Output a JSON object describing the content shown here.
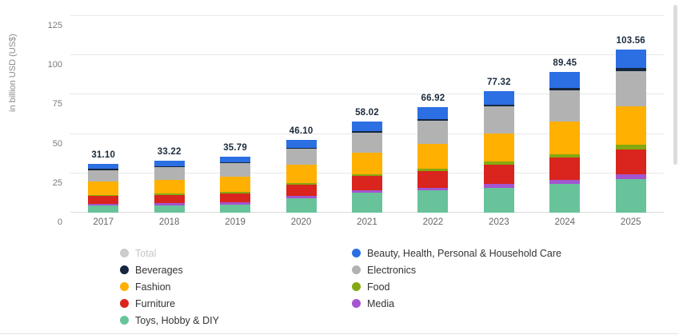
{
  "chart_data": {
    "type": "bar",
    "stacked": true,
    "title": "",
    "xlabel": "",
    "ylabel": "in billion USD (US$)",
    "ylim": [
      0,
      125
    ],
    "yticks": [
      0,
      25,
      50,
      75,
      100,
      125
    ],
    "grid": true,
    "legend_position": "bottom",
    "categories": [
      "2017",
      "2018",
      "2019",
      "2020",
      "2021",
      "2022",
      "2023",
      "2024",
      "2025"
    ],
    "total_labels": [
      "31.10",
      "33.22",
      "35.79",
      "46.10",
      "58.02",
      "66.92",
      "77.32",
      "89.45",
      "103.56"
    ],
    "totals": [
      31.1,
      33.22,
      35.79,
      46.1,
      58.02,
      66.92,
      77.32,
      89.45,
      103.56
    ],
    "stack_order": [
      "Toys, Hobby & DIY",
      "Media",
      "Furniture",
      "Food",
      "Fashion",
      "Electronics",
      "Beverages",
      "Beauty, Health, Personal & Household Care"
    ],
    "series": [
      {
        "name": "Beauty, Health, Personal & Household Care",
        "color": "#2b6fe3",
        "values": [
          3.3,
          3.5,
          3.7,
          4.7,
          6.0,
          7.2,
          8.5,
          10.25,
          11.76
        ]
      },
      {
        "name": "Beverages",
        "color": "#16273f",
        "values": [
          0.6,
          0.72,
          0.79,
          0.9,
          1.02,
          1.2,
          1.32,
          1.5,
          1.7
        ]
      },
      {
        "name": "Electronics",
        "color": "#b2b2b2",
        "values": [
          7.5,
          8.0,
          8.6,
          10.0,
          13.0,
          15.0,
          17.0,
          19.5,
          22.5
        ]
      },
      {
        "name": "Fashion",
        "color": "#ffb000",
        "values": [
          8.5,
          9.0,
          9.7,
          11.5,
          13.5,
          15.5,
          18.0,
          21.0,
          24.5
        ]
      },
      {
        "name": "Food",
        "color": "#84a810",
        "values": [
          0.5,
          0.6,
          0.7,
          1.0,
          1.2,
          1.5,
          1.8,
          2.2,
          2.8
        ]
      },
      {
        "name": "Furniture",
        "color": "#d9251d",
        "values": [
          5.0,
          5.4,
          5.9,
          7.5,
          9.0,
          10.5,
          12.5,
          14.0,
          16.0
        ]
      },
      {
        "name": "Media",
        "color": "#a455cf",
        "values": [
          1.2,
          1.2,
          1.3,
          1.5,
          1.8,
          2.0,
          2.2,
          2.5,
          2.8
        ]
      },
      {
        "name": "Toys, Hobby & DIY",
        "color": "#68c39b",
        "values": [
          4.5,
          4.8,
          5.1,
          9.0,
          12.5,
          14.02,
          16.0,
          18.5,
          21.5
        ]
      }
    ]
  },
  "legend": {
    "items": [
      {
        "label": "Total",
        "color": "#cccccc",
        "muted": true
      },
      {
        "label": "Beauty, Health, Personal & Household Care",
        "color": "#2b6fe3",
        "muted": false
      },
      {
        "label": "Beverages",
        "color": "#16273f",
        "muted": false
      },
      {
        "label": "Electronics",
        "color": "#b2b2b2",
        "muted": false
      },
      {
        "label": "Fashion",
        "color": "#ffb000",
        "muted": false
      },
      {
        "label": "Food",
        "color": "#84a810",
        "muted": false
      },
      {
        "label": "Furniture",
        "color": "#d9251d",
        "muted": false
      },
      {
        "label": "Media",
        "color": "#a455cf",
        "muted": false
      },
      {
        "label": "Toys, Hobby & DIY",
        "color": "#68c39b",
        "muted": false
      }
    ]
  }
}
